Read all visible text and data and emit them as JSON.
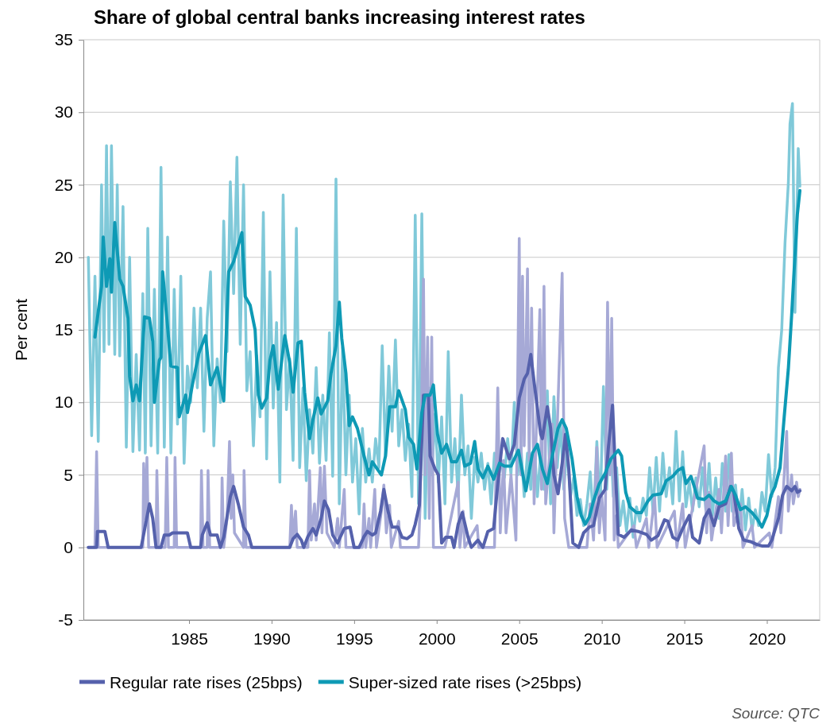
{
  "chart_data": {
    "type": "line",
    "title": "Share of global central banks increasing interest rates",
    "ylabel": "Per cent",
    "xlim": [
      1978.6,
      2023.2
    ],
    "xticks": [
      1985,
      1990,
      1995,
      2000,
      2005,
      2010,
      2015,
      2020
    ],
    "ylim": [
      -5,
      35
    ],
    "yticks": [
      -5,
      0,
      5,
      10,
      15,
      20,
      25,
      30,
      35
    ],
    "grid": "y",
    "legend": "bottom",
    "annotations": [
      "Source: QTC"
    ],
    "series": [
      {
        "color": "#80c9d9",
        "x": [
          1978.9,
          1979.1,
          1979.3,
          1979.5,
          1979.7,
          1979.85,
          1980.0,
          1980.15,
          1980.3,
          1980.5,
          1980.65,
          1980.8,
          1981.0,
          1981.2,
          1981.4,
          1981.6,
          1981.8,
          1982.0,
          1982.2,
          1982.35,
          1982.5,
          1982.7,
          1982.9,
          1983.1,
          1983.3,
          1983.5,
          1983.7,
          1983.9,
          1984.1,
          1984.3,
          1984.5,
          1984.7,
          1984.9,
          1985.1,
          1985.3,
          1985.5,
          1985.7,
          1985.9,
          1986.1,
          1986.3,
          1986.5,
          1986.7,
          1986.9,
          1987.1,
          1987.3,
          1987.5,
          1987.7,
          1987.9,
          1988.1,
          1988.3,
          1988.5,
          1988.7,
          1988.9,
          1989.1,
          1989.3,
          1989.5,
          1989.7,
          1989.9,
          1990.1,
          1990.3,
          1990.5,
          1990.7,
          1990.9,
          1991.1,
          1991.3,
          1991.5,
          1991.7,
          1991.9,
          1992.1,
          1992.3,
          1992.5,
          1992.7,
          1992.9,
          1993.1,
          1993.3,
          1993.5,
          1993.7,
          1993.9,
          1994.1,
          1994.3,
          1994.5,
          1994.7,
          1994.9,
          1995.1,
          1995.3,
          1995.5,
          1995.7,
          1995.9,
          1996.1,
          1996.3,
          1996.5,
          1996.7,
          1996.9,
          1997.1,
          1997.3,
          1997.5,
          1997.7,
          1997.9,
          1998.1,
          1998.3,
          1998.5,
          1998.7,
          1998.9,
          1999.1,
          1999.3,
          1999.5,
          1999.7,
          1999.9,
          2000.1,
          2000.3,
          2000.5,
          2000.7,
          2000.9,
          2001.1,
          2001.3,
          2001.5,
          2001.7,
          2001.9,
          2002.1,
          2002.3,
          2002.5,
          2002.7,
          2002.9,
          2003.1,
          2003.3,
          2003.5,
          2003.7,
          2003.9,
          2004.1,
          2004.3,
          2004.5,
          2004.7,
          2004.9,
          2005.1,
          2005.3,
          2005.5,
          2005.7,
          2005.9,
          2006.1,
          2006.3,
          2006.5,
          2006.7,
          2006.9,
          2007.1,
          2007.3,
          2007.5,
          2007.7,
          2007.9,
          2008.1,
          2008.3,
          2008.5,
          2008.7,
          2008.9,
          2009.1,
          2009.3,
          2009.5,
          2009.7,
          2009.9,
          2010.1,
          2010.3,
          2010.5,
          2010.7,
          2010.9,
          2011.1,
          2011.3,
          2011.5,
          2011.7,
          2011.9,
          2012.1,
          2012.3,
          2012.5,
          2012.7,
          2012.9,
          2013.1,
          2013.3,
          2013.5,
          2013.7,
          2013.9,
          2014.1,
          2014.3,
          2014.5,
          2014.7,
          2014.9,
          2015.1,
          2015.3,
          2015.5,
          2015.7,
          2015.9,
          2016.1,
          2016.3,
          2016.5,
          2016.7,
          2016.9,
          2017.1,
          2017.3,
          2017.5,
          2017.7,
          2017.9,
          2018.1,
          2018.3,
          2018.5,
          2018.7,
          2018.9,
          2019.1,
          2019.3,
          2019.5,
          2019.7,
          2019.9,
          2020.1,
          2020.3,
          2020.5,
          2020.7,
          2020.9,
          2021.1,
          2021.3,
          2021.4,
          2021.55,
          2021.7,
          2021.9,
          2022.0
        ],
        "values": [
          20,
          7.7,
          18.7,
          7.3,
          25,
          13.5,
          27.7,
          14,
          27.7,
          13.3,
          25,
          13.2,
          23.5,
          6.9,
          20,
          6.6,
          13.3,
          6.7,
          17.5,
          6.5,
          22,
          7,
          17.8,
          6.5,
          26.2,
          6.9,
          21.4,
          6.5,
          17.8,
          8.5,
          18.7,
          5.8,
          12.5,
          10,
          16.5,
          11,
          16.5,
          8,
          15.8,
          19,
          7,
          13,
          10,
          22.5,
          13.5,
          25.2,
          17.5,
          26.9,
          14,
          25,
          10.8,
          13.5,
          7,
          13.2,
          9,
          23.1,
          6.1,
          19,
          9.6,
          15.5,
          4.5,
          24.3,
          9.5,
          13,
          6,
          22,
          5.5,
          11,
          4.6,
          9.5,
          6.5,
          12.4,
          5.8,
          10.5,
          6,
          14.8,
          4.9,
          25.4,
          3,
          13.8,
          5,
          10.5,
          4.5,
          7.5,
          2.3,
          8.2,
          4.5,
          6.8,
          4.5,
          7.5,
          5.5,
          13.9,
          6.3,
          12.5,
          8,
          14.3,
          7,
          9.5,
          6,
          8.5,
          3.5,
          22.9,
          3,
          23,
          2,
          11,
          5,
          9.2,
          4.5,
          9,
          3,
          13.5,
          4.5,
          7.5,
          3.5,
          10.5,
          5,
          7,
          2,
          6.2,
          4.5,
          6.5,
          4,
          5.8,
          3,
          6.5,
          4.5,
          6,
          4.8,
          7.5,
          5,
          10,
          5,
          7,
          3.5,
          6.5,
          4,
          7.2,
          3.5,
          6.5,
          4,
          10.8,
          3,
          10.4,
          5.5,
          8.5,
          4,
          7,
          3.5,
          4.8,
          2.2,
          3.3,
          1.5,
          3,
          5.2,
          1.8,
          7.3,
          2.5,
          11.1,
          4,
          8.6,
          3.5,
          5.5,
          1.5,
          3.2,
          1.1,
          3.4,
          0.7,
          2.8,
          1.8,
          3.4,
          2.2,
          5.5,
          2.5,
          6.2,
          2.5,
          6.5,
          3.5,
          5.5,
          3,
          8,
          3.2,
          6.6,
          2.8,
          4.5,
          2.5,
          4.8,
          2.8,
          5.5,
          2.6,
          5.8,
          2.2,
          4.8,
          2,
          5.8,
          2.5,
          6.4,
          2.5,
          4.3,
          1.6,
          4,
          1.2,
          3.4,
          1.2,
          2.6,
          1.5,
          3.8,
          2.5,
          6.4,
          3.5,
          5.5,
          12.4,
          15,
          21,
          25.1,
          29.2,
          30.6,
          16.2,
          27.5,
          24.9
        ]
      },
      {
        "color": "#a6a9d6",
        "x": [
          1978.9,
          1979.3,
          1979.4,
          1979.5,
          1982.2,
          1982.25,
          1982.35,
          1982.45,
          1982.55,
          1983.0,
          1983.05,
          1983.15,
          1983.55,
          1983.65,
          1983.75,
          1984.1,
          1984.15,
          1984.25,
          1985.7,
          1985.75,
          1985.85,
          1986.1,
          1986.15,
          1986.25,
          1986.95,
          1987.0,
          1987.1,
          1987.3,
          1987.45,
          1987.55,
          1987.65,
          1987.75,
          1988.3,
          1988.33,
          1988.45,
          1991.1,
          1991.2,
          1991.3,
          1991.45,
          1991.55,
          1992.2,
          1992.3,
          1992.4,
          1992.6,
          1992.7,
          1992.95,
          1993.05,
          1993.2,
          1993.35,
          1993.8,
          1994.0,
          1994.1,
          1994.4,
          1994.5,
          1995.5,
          1995.6,
          1995.7,
          1995.9,
          1996.0,
          1996.25,
          1996.35,
          1996.65,
          1996.8,
          1996.95,
          1997.15,
          1997.25,
          1997.7,
          1997.8,
          1998.9,
          1999.0,
          1999.2,
          1999.3,
          1999.45,
          1999.55,
          1999.7,
          1999.8,
          2000.5,
          2001.3,
          2001.4,
          2001.6,
          2001.7,
          2002.45,
          2002.55,
          2003.5,
          2003.7,
          2003.85,
          2004.05,
          2004.2,
          2004.5,
          2004.8,
          2005.0,
          2005.1,
          2005.2,
          2005.3,
          2005.5,
          2005.6,
          2005.75,
          2005.9,
          2006.25,
          2006.35,
          2006.5,
          2006.6,
          2007.0,
          2007.1,
          2007.6,
          2007.75,
          2008.0,
          2009.1,
          2009.3,
          2009.5,
          2009.7,
          2009.85,
          2010.0,
          2010.2,
          2010.35,
          2010.5,
          2010.6,
          2010.75,
          2010.9,
          2011.0,
          2011.95,
          2012.1,
          2012.7,
          2012.85,
          2013.2,
          2013.35,
          2014.4,
          2014.55,
          2014.9,
          2015.05,
          2016.2,
          2016.35,
          2016.5,
          2016.65,
          2017.1,
          2017.25,
          2017.5,
          2017.65,
          2017.85,
          2018.0,
          2018.4,
          2018.55,
          2019.1,
          2019.25,
          2020.15,
          2020.3,
          2020.7,
          2020.85,
          2021.2,
          2021.3,
          2021.5,
          2021.6,
          2021.8,
          2021.9,
          2022.0
        ],
        "values": [
          0,
          0,
          6.6,
          0,
          0,
          5.8,
          2,
          6.2,
          0,
          0,
          5.3,
          0,
          0,
          6.2,
          0,
          0,
          6.2,
          0,
          0,
          5.3,
          0,
          0,
          5.3,
          0,
          0,
          4.8,
          0,
          2,
          7.3,
          2,
          5,
          1,
          0,
          5.3,
          0,
          0,
          2.9,
          0.5,
          2.5,
          0,
          0,
          5.3,
          0.5,
          3,
          0.5,
          5.5,
          1,
          5.6,
          1,
          0,
          2,
          0,
          4,
          0,
          0,
          3,
          0,
          2,
          0,
          4,
          0,
          2.5,
          4.3,
          1,
          2.9,
          0,
          1.8,
          0,
          0,
          3,
          18.5,
          5,
          14.5,
          2,
          14.5,
          0,
          0,
          4.5,
          0,
          2.5,
          0,
          1.5,
          0,
          0,
          11,
          1,
          6,
          1,
          5,
          0.5,
          21.3,
          5,
          18.7,
          7,
          19.2,
          6,
          16.5,
          3,
          16.4,
          4,
          18,
          3,
          8.5,
          1,
          18.9,
          2,
          0,
          0,
          3,
          0.5,
          6.9,
          1,
          3.5,
          0.5,
          16.9,
          5,
          15.8,
          0.5,
          2.2,
          0,
          1.5,
          0,
          2,
          0,
          3.5,
          0,
          2.5,
          0,
          3,
          0,
          7,
          1,
          3.8,
          0.5,
          4,
          1,
          6.3,
          1.5,
          6.5,
          1.5,
          3,
          0,
          1.5,
          0,
          1,
          0,
          3.5,
          1,
          8,
          2.5,
          5,
          3,
          4.5,
          3.5,
          4
        ]
      },
      {
        "name": "Regular rate rises (25bps)",
        "color": "#5561ac",
        "x": [
          1978.9,
          1979.4,
          1979.45,
          1979.9,
          1980.1,
          1982.1,
          1982.3,
          1982.6,
          1982.8,
          1983.0,
          1983.3,
          1983.5,
          1983.8,
          1984.0,
          1984.9,
          1985.1,
          1985.7,
          1985.8,
          1986.1,
          1986.3,
          1986.7,
          1986.9,
          1987.1,
          1987.5,
          1987.7,
          1988.0,
          1988.3,
          1988.6,
          1988.8,
          1991.1,
          1991.3,
          1991.55,
          1991.8,
          1991.95,
          1992.2,
          1992.5,
          1992.7,
          1993.0,
          1993.2,
          1993.45,
          1993.7,
          1994.0,
          1994.4,
          1994.75,
          1995.0,
          1995.3,
          1995.6,
          1995.8,
          1996.1,
          1996.3,
          1996.6,
          1996.8,
          1997.05,
          1997.3,
          1997.65,
          1997.9,
          1998.2,
          1998.5,
          1998.7,
          1998.95,
          1999.2,
          1999.5,
          1999.6,
          1999.9,
          2000.1,
          2000.3,
          2000.55,
          2000.9,
          2001.05,
          2001.3,
          2001.55,
          2001.9,
          2002.1,
          2002.5,
          2002.8,
          2003.1,
          2003.45,
          2003.7,
          2004.0,
          2004.4,
          2004.7,
          2005.0,
          2005.3,
          2005.5,
          2005.7,
          2005.9,
          2006.3,
          2006.4,
          2006.7,
          2006.9,
          2007.1,
          2007.35,
          2007.6,
          2007.8,
          2008.0,
          2008.25,
          2008.6,
          2008.9,
          2009.25,
          2009.5,
          2009.85,
          2010.2,
          2010.4,
          2010.65,
          2010.8,
          2011.0,
          2011.35,
          2011.8,
          2012.2,
          2012.7,
          2013.0,
          2013.4,
          2013.8,
          2014.0,
          2014.3,
          2014.6,
          2014.9,
          2015.3,
          2015.5,
          2015.9,
          2016.2,
          2016.5,
          2016.8,
          2017.1,
          2017.5,
          2017.8,
          2018.0,
          2018.3,
          2018.6,
          2019.0,
          2019.4,
          2019.7,
          2020.1,
          2020.3,
          2020.7,
          2020.95,
          2021.2,
          2021.5,
          2021.7,
          2021.85,
          2022.0
        ],
        "values": [
          0,
          0,
          1.1,
          1.1,
          0,
          0,
          1.2,
          3,
          2,
          0,
          0,
          0.85,
          0.85,
          1,
          1,
          0,
          0,
          0.85,
          1.7,
          0.85,
          0.85,
          0,
          0.7,
          3.5,
          4.2,
          2.9,
          1.4,
          0.85,
          0,
          0,
          0.6,
          0.9,
          0.5,
          0,
          0.75,
          1.3,
          0.85,
          2,
          3.2,
          2.6,
          0.85,
          0.3,
          1.3,
          1.4,
          0,
          0,
          0.75,
          1.1,
          0.85,
          1,
          2.5,
          4,
          2.5,
          1.4,
          1.4,
          0.7,
          0.6,
          0.85,
          1.6,
          2.9,
          10.5,
          10.5,
          6.3,
          5.4,
          5,
          0.3,
          0.7,
          0.7,
          0,
          1.6,
          2.4,
          0.7,
          0,
          0.5,
          0,
          1.1,
          1.3,
          4.4,
          7.5,
          6.1,
          7.1,
          10.3,
          11.6,
          12,
          13.3,
          11.4,
          7.8,
          7.5,
          9.7,
          8.2,
          5,
          3.7,
          5.8,
          7.8,
          5.4,
          0.3,
          0,
          1,
          1.4,
          1.5,
          3.4,
          4,
          6.9,
          9.8,
          5.9,
          0.9,
          0.7,
          1.2,
          1.1,
          0.9,
          0.5,
          0.8,
          1.9,
          1.8,
          0.7,
          0.5,
          1.3,
          2.2,
          0.7,
          0.3,
          2,
          2.6,
          1.5,
          2.8,
          3,
          4.2,
          3.8,
          1.3,
          0.5,
          0.4,
          0.2,
          0.1,
          0.1,
          0.5,
          2,
          3.6,
          4.2,
          3.9,
          4.2,
          3.8,
          3.9
        ]
      },
      {
        "name": "Super-sized rate rises (>25bps)",
        "color": "#0e9ab5",
        "x": [
          1979.3,
          1979.7,
          1979.8,
          1980.0,
          1980.2,
          1980.3,
          1980.5,
          1980.8,
          1981.0,
          1981.3,
          1981.4,
          1981.6,
          1981.8,
          1982.0,
          1982.3,
          1982.6,
          1982.8,
          1982.9,
          1983.2,
          1983.3,
          1983.4,
          1983.7,
          1983.9,
          1984.3,
          1984.4,
          1984.8,
          1984.9,
          1985.2,
          1985.6,
          1986.0,
          1986.3,
          1986.7,
          1987.1,
          1987.4,
          1987.7,
          1988.2,
          1988.4,
          1988.7,
          1989.0,
          1989.2,
          1989.4,
          1989.7,
          1989.9,
          1990.1,
          1990.4,
          1990.8,
          1991.1,
          1991.3,
          1991.6,
          1991.8,
          1992.0,
          1992.3,
          1992.5,
          1992.8,
          1993.0,
          1993.4,
          1993.6,
          1993.9,
          1994.1,
          1994.25,
          1994.5,
          1994.7,
          1994.9,
          1995.2,
          1995.6,
          1995.9,
          1996.1,
          1996.4,
          1996.65,
          1996.9,
          1997.15,
          1997.5,
          1997.7,
          1998.1,
          1998.3,
          1998.6,
          1998.8,
          1999.1,
          1999.3,
          1999.6,
          1999.8,
          2000.05,
          2000.3,
          2000.6,
          2000.9,
          2001.2,
          2001.5,
          2001.7,
          2002.05,
          2002.3,
          2002.5,
          2002.8,
          2003.1,
          2003.45,
          2003.8,
          2004.1,
          2004.5,
          2004.95,
          2005.4,
          2005.8,
          2006.1,
          2006.4,
          2006.7,
          2007.0,
          2007.35,
          2007.6,
          2007.85,
          2008.2,
          2008.5,
          2008.75,
          2009.0,
          2009.25,
          2009.5,
          2009.85,
          2010.2,
          2010.55,
          2010.7,
          2011.0,
          2011.2,
          2011.45,
          2011.7,
          2012.1,
          2012.4,
          2012.8,
          2013.1,
          2013.6,
          2013.9,
          2014.3,
          2014.6,
          2014.9,
          2015.1,
          2015.4,
          2015.6,
          2015.8,
          2016.2,
          2016.5,
          2016.8,
          2017.1,
          2017.5,
          2017.85,
          2018.1,
          2018.4,
          2018.7,
          2019.1,
          2019.45,
          2019.7,
          2020.0,
          2020.25,
          2020.5,
          2020.8,
          2021.05,
          2021.3,
          2021.5,
          2021.7,
          2021.85,
          2022.0
        ],
        "values": [
          14.5,
          18,
          21.4,
          18,
          19.9,
          17.6,
          22.4,
          18.5,
          18,
          15.8,
          11.8,
          10.1,
          11.2,
          10.1,
          15.9,
          15.8,
          14.2,
          10,
          12.9,
          13.1,
          19,
          15.2,
          12.5,
          12.4,
          9,
          10.5,
          9.3,
          11.2,
          13.4,
          14.6,
          11.2,
          12.4,
          10.1,
          19,
          19.7,
          21.7,
          17.3,
          16.7,
          15,
          10.5,
          9.6,
          10.3,
          12.9,
          13.9,
          10.9,
          14.6,
          12.7,
          10.7,
          14.1,
          14.2,
          10.7,
          7.5,
          8.8,
          10.3,
          9.2,
          10.1,
          12,
          13.9,
          16.9,
          14.4,
          12,
          8.4,
          9,
          8.2,
          6.3,
          5,
          5.9,
          5.4,
          5,
          6.3,
          9.7,
          9.7,
          10.8,
          9.5,
          7.6,
          7.1,
          5.4,
          9.3,
          10.5,
          10.5,
          11.2,
          7.8,
          6.5,
          7.1,
          5.9,
          5.9,
          6.7,
          5.6,
          5.8,
          7.3,
          5.4,
          4.8,
          5.6,
          4.7,
          5.8,
          5.6,
          5.6,
          6.7,
          3.9,
          6.5,
          7.1,
          5.4,
          4.4,
          6.3,
          8.2,
          8.8,
          8.2,
          6.1,
          3.5,
          2.2,
          1.6,
          2.1,
          3.2,
          4.4,
          5.1,
          6.1,
          6.3,
          6.7,
          6.3,
          3.8,
          2.8,
          2.4,
          2.4,
          3.2,
          3.6,
          3.7,
          4.6,
          4.9,
          5.3,
          5.5,
          4.4,
          4.9,
          4.2,
          3.4,
          3.3,
          3.6,
          3.2,
          3,
          3.2,
          4.2,
          3.6,
          2.6,
          2.8,
          2.4,
          1.9,
          1.4,
          2.2,
          3.6,
          4.2,
          5.5,
          9,
          12.3,
          16,
          20.1,
          23,
          24.6
        ]
      }
    ]
  }
}
